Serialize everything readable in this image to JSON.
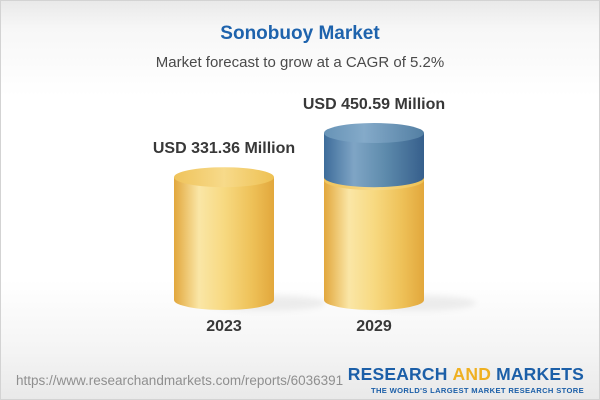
{
  "header": {
    "title": "Sonobuoy Market",
    "subtitle": "Market forecast to grow at a CAGR of 5.2%"
  },
  "chart_data": {
    "type": "bar",
    "style": "3d-cylinder",
    "title": "Sonobuoy Market",
    "subtitle": "Market forecast to grow at a CAGR of 5.2%",
    "unit": "USD Million",
    "cagr_percent": 5.2,
    "categories": [
      "2023",
      "2029"
    ],
    "values": [
      331.36,
      450.59
    ],
    "value_labels": [
      "USD 331.36 Million",
      "USD 450.59 Million"
    ],
    "ylim": [
      0,
      450.59
    ],
    "grid": false,
    "legend": "none",
    "bars": [
      {
        "category": "2023",
        "value": 331.36,
        "label": "USD 331.36 Million",
        "segments": [
          {
            "color": "gold",
            "value": 331.36
          }
        ]
      },
      {
        "category": "2029",
        "value": 450.59,
        "label": "USD 450.59 Million",
        "segments": [
          {
            "color": "gold",
            "value": 331.36
          },
          {
            "color": "blue",
            "value": 119.23
          }
        ]
      }
    ],
    "colors": {
      "gold_base": "#F0C55F",
      "gold_edge": "#E2A73C",
      "gold_highlight": "#FAE6A6",
      "gold_top": "#F5D584",
      "blue_base": "#4A7CA8",
      "blue_edge": "#365F8C",
      "blue_highlight": "#7FA5C5",
      "blue_top": "#6F9BBE"
    }
  },
  "footer": {
    "url": "https://www.researchandmarkets.com/reports/6036391",
    "logo": {
      "word1": "RESEARCH",
      "word2": "AND",
      "word3": "MARKETS",
      "tagline": "THE WORLD'S LARGEST MARKET RESEARCH STORE"
    }
  },
  "colors": {
    "title_blue": "#1E63AD",
    "text_dark": "#383838",
    "subtitle_gray": "#4A4A4A",
    "url_gray": "#8F8F8F",
    "logo_blue": "#1C5FA8",
    "logo_gold": "#EFB021"
  }
}
